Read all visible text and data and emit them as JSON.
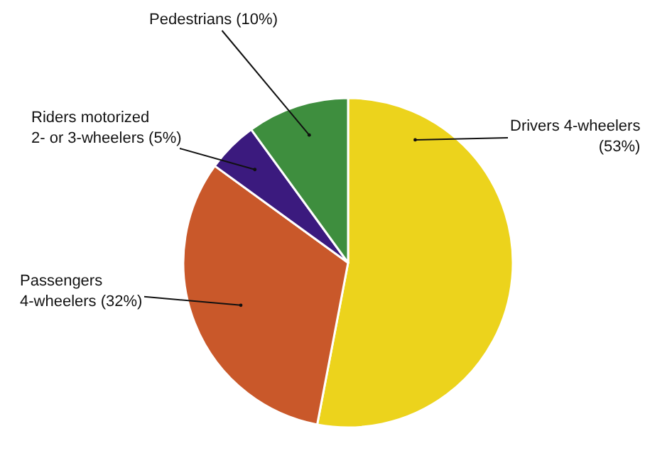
{
  "chart_data": {
    "type": "pie",
    "categories": [
      "Drivers 4-wheelers\n(53%)",
      "Passengers\n4-wheelers (32%)",
      "Riders motorized\n2- or 3-wheelers (5%)",
      "Pedestrians (10%)"
    ],
    "values": [
      53,
      32,
      5,
      10
    ],
    "colors": [
      "#ecd31c",
      "#c9582a",
      "#3b1a7e",
      "#3e8e3e"
    ],
    "legend": false
  }
}
